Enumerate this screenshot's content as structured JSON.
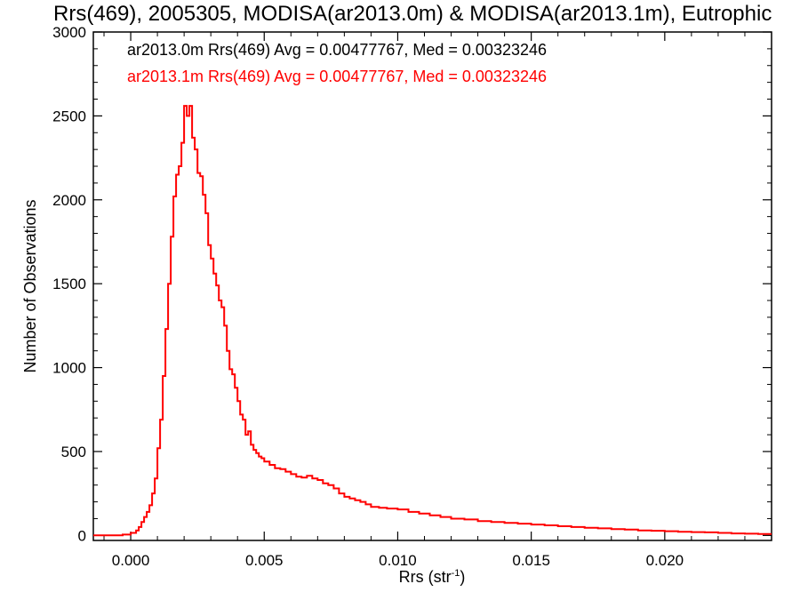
{
  "chart_data": {
    "type": "line",
    "style": "step",
    "title": "Rrs(469), 2005305, MODISA(ar2013.0m) & MODISA(ar2013.1m), Eutrophic",
    "xlabel": "Rrs (str",
    "xlabel_superscript": "-1",
    "xlabel_suffix": ")",
    "ylabel": "Number of Observations",
    "xlim": [
      -0.0014,
      0.024
    ],
    "ylim": [
      -30,
      3000
    ],
    "xticks": [
      "0.000",
      "0.005",
      "0.010",
      "0.015",
      "0.020"
    ],
    "xtick_values": [
      0.0,
      0.005,
      0.01,
      0.015,
      0.02
    ],
    "yticks": [
      "0",
      "500",
      "1000",
      "1500",
      "2000",
      "2500",
      "3000"
    ],
    "ytick_values": [
      0,
      500,
      1000,
      1500,
      2000,
      2500,
      3000
    ],
    "grid": false,
    "legend_position": "top-left",
    "annotations": [
      {
        "text": "ar2013.0m Rrs(469) Avg = 0.00477767, Med = 0.00323246",
        "color": "#000000"
      },
      {
        "text": "ar2013.1m Rrs(469) Avg = 0.00477767, Med = 0.00323246",
        "color": "#ff0000"
      }
    ],
    "series": [
      {
        "name": "ar2013.1m",
        "color": "#ff0000",
        "x": [
          -0.0014,
          -0.0006,
          -0.0003,
          0.0,
          0.0002,
          0.0003,
          0.0004,
          0.0005,
          0.0006,
          0.0007,
          0.0008,
          0.0009,
          0.001,
          0.0011,
          0.0012,
          0.0013,
          0.0014,
          0.0015,
          0.0016,
          0.0017,
          0.0018,
          0.0019,
          0.002,
          0.0021,
          0.0022,
          0.0023,
          0.0024,
          0.0025,
          0.0026,
          0.0027,
          0.0028,
          0.0029,
          0.003,
          0.0031,
          0.0032,
          0.0033,
          0.0034,
          0.0035,
          0.0036,
          0.0037,
          0.0038,
          0.0039,
          0.004,
          0.0041,
          0.0042,
          0.0043,
          0.0044,
          0.0045,
          0.0046,
          0.0047,
          0.0048,
          0.0049,
          0.005,
          0.0052,
          0.0054,
          0.0056,
          0.0058,
          0.006,
          0.0062,
          0.0064,
          0.0066,
          0.0068,
          0.007,
          0.0072,
          0.0074,
          0.0076,
          0.0078,
          0.008,
          0.0082,
          0.0084,
          0.0086,
          0.0088,
          0.009,
          0.0093,
          0.0096,
          0.01,
          0.0104,
          0.0108,
          0.0112,
          0.0116,
          0.012,
          0.0125,
          0.013,
          0.0135,
          0.014,
          0.0145,
          0.015,
          0.0155,
          0.016,
          0.0165,
          0.017,
          0.0175,
          0.018,
          0.0185,
          0.019,
          0.0195,
          0.02,
          0.0205,
          0.021,
          0.0215,
          0.022,
          0.0225,
          0.023,
          0.0235
        ],
        "values": [
          0,
          0,
          5,
          15,
          30,
          50,
          80,
          110,
          140,
          180,
          250,
          340,
          520,
          690,
          950,
          1230,
          1500,
          1780,
          2020,
          2150,
          2200,
          2340,
          2560,
          2500,
          2560,
          2370,
          2300,
          2160,
          2140,
          2030,
          1920,
          1730,
          1650,
          1560,
          1490,
          1400,
          1360,
          1250,
          1100,
          990,
          960,
          880,
          800,
          720,
          690,
          600,
          620,
          540,
          510,
          490,
          470,
          460,
          440,
          420,
          400,
          395,
          380,
          365,
          350,
          345,
          355,
          340,
          330,
          310,
          300,
          280,
          250,
          230,
          220,
          210,
          200,
          185,
          170,
          165,
          160,
          155,
          140,
          130,
          120,
          110,
          100,
          95,
          85,
          80,
          75,
          70,
          65,
          60,
          55,
          50,
          45,
          42,
          38,
          35,
          30,
          28,
          25,
          22,
          20,
          18,
          15,
          12,
          10,
          8
        ]
      }
    ]
  }
}
